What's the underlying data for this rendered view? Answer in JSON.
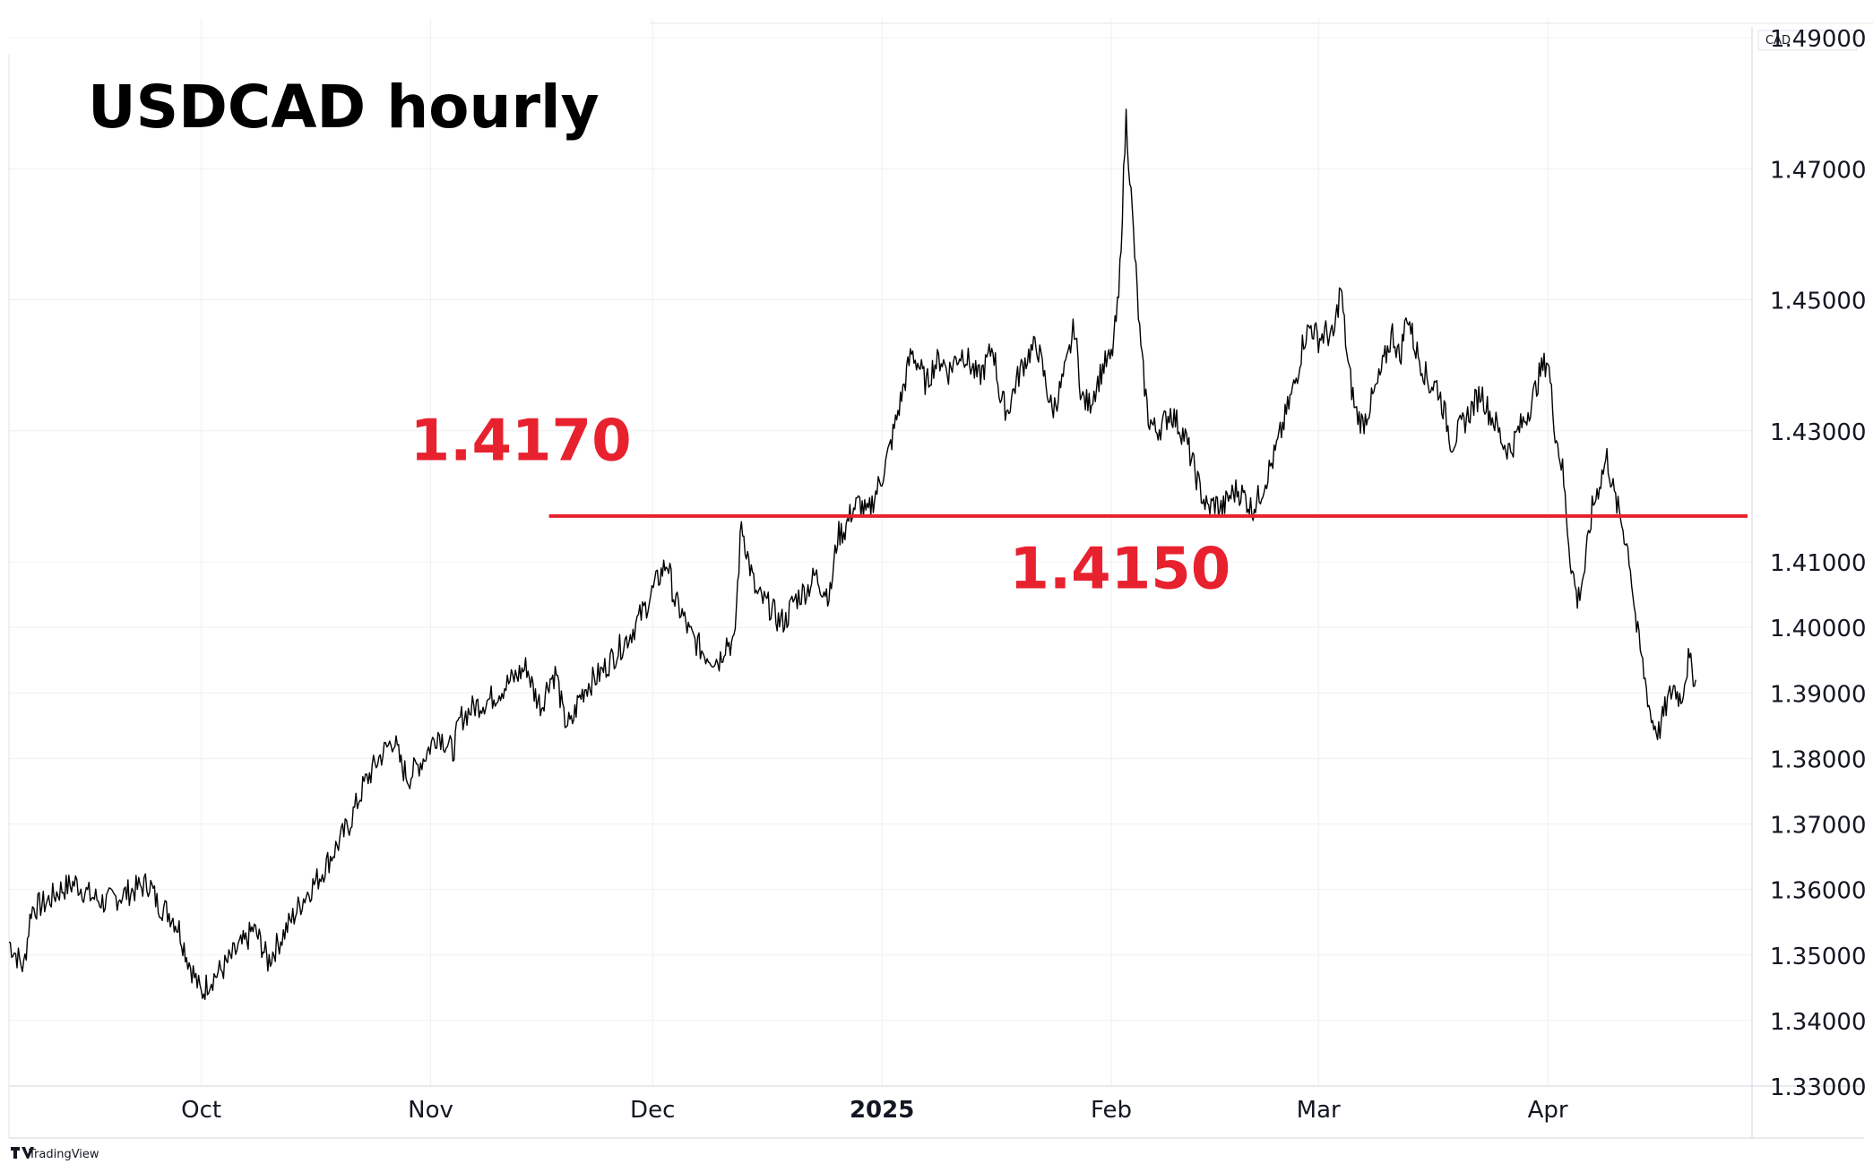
{
  "chart_data": {
    "type": "line",
    "title": "USDCAD hourly",
    "currency_label": "CAD",
    "brand": "TradingView",
    "xlabel": "",
    "ylabel": "",
    "ylim": [
      1.33,
      1.49
    ],
    "y_ticks": [
      "1.49000",
      "1.47000",
      "1.45000",
      "1.43000",
      "1.41000",
      "1.40000",
      "1.39000",
      "1.38000",
      "1.37000",
      "1.36000",
      "1.35000",
      "1.34000",
      "1.33000"
    ],
    "y_tick_values": [
      1.49,
      1.47,
      1.45,
      1.43,
      1.41,
      1.4,
      1.39,
      1.38,
      1.37,
      1.36,
      1.35,
      1.34,
      1.33
    ],
    "x_ticks": [
      {
        "label": "Oct",
        "date": "2024-10-01",
        "bold": false
      },
      {
        "label": "Nov",
        "date": "2024-11-01",
        "bold": false
      },
      {
        "label": "Dec",
        "date": "2024-12-01",
        "bold": false
      },
      {
        "label": "2025",
        "date": "2025-01-01",
        "bold": true
      },
      {
        "label": "Feb",
        "date": "2025-02-01",
        "bold": false
      },
      {
        "label": "Mar",
        "date": "2025-03-01",
        "bold": false
      },
      {
        "label": "Apr",
        "date": "2025-04-01",
        "bold": false
      }
    ],
    "xlim": [
      "2024-09-05",
      "2025-04-28"
    ],
    "grid": true,
    "line_color": "#000000",
    "series": [
      {
        "points": [
          [
            "2024-09-05",
            1.352
          ],
          [
            "2024-09-07",
            1.348
          ],
          [
            "2024-09-08",
            1.357
          ],
          [
            "2024-09-10",
            1.358
          ],
          [
            "2024-09-12",
            1.36
          ],
          [
            "2024-09-14",
            1.361
          ],
          [
            "2024-09-16",
            1.359
          ],
          [
            "2024-09-18",
            1.358
          ],
          [
            "2024-09-20",
            1.359
          ],
          [
            "2024-09-22",
            1.36
          ],
          [
            "2024-09-24",
            1.361
          ],
          [
            "2024-09-25",
            1.358
          ],
          [
            "2024-09-27",
            1.356
          ],
          [
            "2024-09-28",
            1.354
          ],
          [
            "2024-09-29",
            1.35
          ],
          [
            "2024-10-01",
            1.344
          ],
          [
            "2024-10-02",
            1.346
          ],
          [
            "2024-10-04",
            1.348
          ],
          [
            "2024-10-06",
            1.351
          ],
          [
            "2024-10-07",
            1.352
          ],
          [
            "2024-10-08",
            1.354
          ],
          [
            "2024-10-09",
            1.352
          ],
          [
            "2024-10-10",
            1.349
          ],
          [
            "2024-10-11",
            1.351
          ],
          [
            "2024-10-13",
            1.355
          ],
          [
            "2024-10-15",
            1.359
          ],
          [
            "2024-10-17",
            1.362
          ],
          [
            "2024-10-19",
            1.366
          ],
          [
            "2024-10-21",
            1.37
          ],
          [
            "2024-10-23",
            1.376
          ],
          [
            "2024-10-25",
            1.38
          ],
          [
            "2024-10-27",
            1.383
          ],
          [
            "2024-10-28",
            1.379
          ],
          [
            "2024-10-29",
            1.377
          ],
          [
            "2024-10-31",
            1.38
          ],
          [
            "2024-11-02",
            1.384
          ],
          [
            "2024-11-04",
            1.381
          ],
          [
            "2024-11-05",
            1.386
          ],
          [
            "2024-11-07",
            1.388
          ],
          [
            "2024-11-09",
            1.389
          ],
          [
            "2024-11-11",
            1.391
          ],
          [
            "2024-11-13",
            1.393
          ],
          [
            "2024-11-14",
            1.394
          ],
          [
            "2024-11-15",
            1.39
          ],
          [
            "2024-11-16",
            1.388
          ],
          [
            "2024-11-17",
            1.392
          ],
          [
            "2024-11-18",
            1.393
          ],
          [
            "2024-11-19",
            1.386
          ],
          [
            "2024-11-20",
            1.385
          ],
          [
            "2024-11-21",
            1.389
          ],
          [
            "2024-11-22",
            1.391
          ],
          [
            "2024-11-24",
            1.393
          ],
          [
            "2024-11-26",
            1.396
          ],
          [
            "2024-11-28",
            1.399
          ],
          [
            "2024-11-30",
            1.403
          ],
          [
            "2024-12-02",
            1.408
          ],
          [
            "2024-12-03",
            1.41
          ],
          [
            "2024-12-04",
            1.404
          ],
          [
            "2024-12-05",
            1.402
          ],
          [
            "2024-12-06",
            1.399
          ],
          [
            "2024-12-08",
            1.396
          ],
          [
            "2024-12-10",
            1.395
          ],
          [
            "2024-12-11",
            1.398
          ],
          [
            "2024-12-12",
            1.397
          ],
          [
            "2024-12-13",
            1.416
          ],
          [
            "2024-12-14",
            1.41
          ],
          [
            "2024-12-15",
            1.405
          ],
          [
            "2024-12-17",
            1.403
          ],
          [
            "2024-12-18",
            1.401
          ],
          [
            "2024-12-19",
            1.401
          ],
          [
            "2024-12-20",
            1.404
          ],
          [
            "2024-12-22",
            1.406
          ],
          [
            "2024-12-23",
            1.408
          ],
          [
            "2024-12-24",
            1.406
          ],
          [
            "2024-12-25",
            1.405
          ],
          [
            "2024-12-26",
            1.414
          ],
          [
            "2024-12-27",
            1.415
          ],
          [
            "2024-12-28",
            1.418
          ],
          [
            "2024-12-29",
            1.419
          ],
          [
            "2024-12-30",
            1.417
          ],
          [
            "2024-12-31",
            1.42
          ],
          [
            "2025-01-01",
            1.423
          ],
          [
            "2025-01-02",
            1.427
          ],
          [
            "2025-01-03",
            1.432
          ],
          [
            "2025-01-04",
            1.437
          ],
          [
            "2025-01-05",
            1.442
          ],
          [
            "2025-01-06",
            1.44
          ],
          [
            "2025-01-07",
            1.437
          ],
          [
            "2025-01-08",
            1.44
          ],
          [
            "2025-01-09",
            1.441
          ],
          [
            "2025-01-10",
            1.439
          ],
          [
            "2025-01-11",
            1.441
          ],
          [
            "2025-01-12",
            1.442
          ],
          [
            "2025-01-13",
            1.44
          ],
          [
            "2025-01-14",
            1.438
          ],
          [
            "2025-01-15",
            1.44
          ],
          [
            "2025-01-16",
            1.443
          ],
          [
            "2025-01-17",
            1.435
          ],
          [
            "2025-01-18",
            1.433
          ],
          [
            "2025-01-19",
            1.437
          ],
          [
            "2025-01-20",
            1.44
          ],
          [
            "2025-01-21",
            1.442
          ],
          [
            "2025-01-22",
            1.443
          ],
          [
            "2025-01-23",
            1.438
          ],
          [
            "2025-01-24",
            1.433
          ],
          [
            "2025-01-25",
            1.436
          ],
          [
            "2025-01-26",
            1.44
          ],
          [
            "2025-01-27",
            1.446
          ],
          [
            "2025-01-28",
            1.435
          ],
          [
            "2025-01-29",
            1.434
          ],
          [
            "2025-01-30",
            1.437
          ],
          [
            "2025-01-31",
            1.44
          ],
          [
            "2025-02-01",
            1.441
          ],
          [
            "2025-02-02",
            1.45
          ],
          [
            "2025-02-03",
            1.478
          ],
          [
            "2025-02-04",
            1.46
          ],
          [
            "2025-02-05",
            1.442
          ],
          [
            "2025-02-06",
            1.432
          ],
          [
            "2025-02-07",
            1.43
          ],
          [
            "2025-02-08",
            1.431
          ],
          [
            "2025-02-09",
            1.433
          ],
          [
            "2025-02-10",
            1.431
          ],
          [
            "2025-02-11",
            1.429
          ],
          [
            "2025-02-12",
            1.425
          ],
          [
            "2025-02-13",
            1.421
          ],
          [
            "2025-02-14",
            1.418
          ],
          [
            "2025-02-15",
            1.419
          ],
          [
            "2025-02-16",
            1.418
          ],
          [
            "2025-02-17",
            1.42
          ],
          [
            "2025-02-18",
            1.421
          ],
          [
            "2025-02-19",
            1.42
          ],
          [
            "2025-02-20",
            1.418
          ],
          [
            "2025-02-21",
            1.42
          ],
          [
            "2025-02-22",
            1.423
          ],
          [
            "2025-02-23",
            1.426
          ],
          [
            "2025-02-24",
            1.43
          ],
          [
            "2025-02-25",
            1.434
          ],
          [
            "2025-02-26",
            1.438
          ],
          [
            "2025-02-27",
            1.444
          ],
          [
            "2025-02-28",
            1.446
          ],
          [
            "2025-03-01",
            1.444
          ],
          [
            "2025-03-02",
            1.445
          ],
          [
            "2025-03-03",
            1.444
          ],
          [
            "2025-03-04",
            1.452
          ],
          [
            "2025-03-05",
            1.44
          ],
          [
            "2025-03-06",
            1.433
          ],
          [
            "2025-03-07",
            1.431
          ],
          [
            "2025-03-08",
            1.434
          ],
          [
            "2025-03-09",
            1.437
          ],
          [
            "2025-03-10",
            1.441
          ],
          [
            "2025-03-11",
            1.445
          ],
          [
            "2025-03-12",
            1.441
          ],
          [
            "2025-03-13",
            1.448
          ],
          [
            "2025-03-14",
            1.443
          ],
          [
            "2025-03-15",
            1.44
          ],
          [
            "2025-03-16",
            1.437
          ],
          [
            "2025-03-17",
            1.437
          ],
          [
            "2025-03-18",
            1.433
          ],
          [
            "2025-03-19",
            1.428
          ],
          [
            "2025-03-20",
            1.43
          ],
          [
            "2025-03-21",
            1.432
          ],
          [
            "2025-03-22",
            1.434
          ],
          [
            "2025-03-23",
            1.436
          ],
          [
            "2025-03-24",
            1.433
          ],
          [
            "2025-03-25",
            1.431
          ],
          [
            "2025-03-26",
            1.428
          ],
          [
            "2025-03-27",
            1.427
          ],
          [
            "2025-03-28",
            1.43
          ],
          [
            "2025-03-29",
            1.432
          ],
          [
            "2025-03-30",
            1.435
          ],
          [
            "2025-03-31",
            1.439
          ],
          [
            "2025-04-01",
            1.441
          ],
          [
            "2025-04-02",
            1.43
          ],
          [
            "2025-04-03",
            1.424
          ],
          [
            "2025-04-04",
            1.411
          ],
          [
            "2025-04-05",
            1.404
          ],
          [
            "2025-04-06",
            1.409
          ],
          [
            "2025-04-07",
            1.418
          ],
          [
            "2025-04-08",
            1.422
          ],
          [
            "2025-04-09",
            1.426
          ],
          [
            "2025-04-10",
            1.42
          ],
          [
            "2025-04-11",
            1.416
          ],
          [
            "2025-04-12",
            1.411
          ],
          [
            "2025-04-13",
            1.4
          ],
          [
            "2025-04-14",
            1.393
          ],
          [
            "2025-04-15",
            1.386
          ],
          [
            "2025-04-16",
            1.384
          ],
          [
            "2025-04-17",
            1.388
          ],
          [
            "2025-04-18",
            1.391
          ],
          [
            "2025-04-19",
            1.389
          ],
          [
            "2025-04-20",
            1.395
          ],
          [
            "2025-04-21",
            1.392
          ]
        ]
      }
    ],
    "annotations": [
      {
        "text": "1.4170",
        "color": "#e8212e",
        "anchor_date": "2024-11-17",
        "anchor_value": 1.4255
      },
      {
        "text": "1.4150",
        "color": "#e8212e",
        "anchor_date": "2025-02-06",
        "anchor_value": 1.406
      }
    ],
    "horizontal_line": {
      "value": 1.417,
      "from_date": "2024-11-17",
      "to_date": "2025-04-28",
      "color": "#e8212e"
    }
  }
}
